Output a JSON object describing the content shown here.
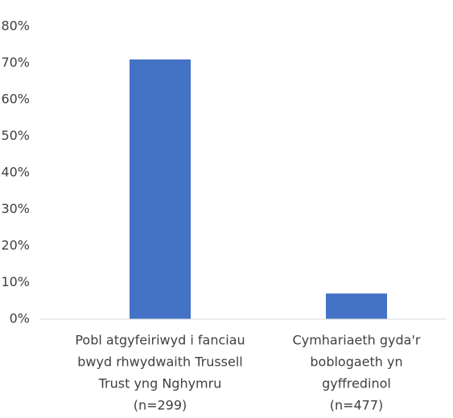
{
  "chart_data": {
    "type": "bar",
    "categories": [
      [
        "Pobl atgyfeiriwyd i fanciau",
        "bwyd rhwydwaith Trussell",
        "Trust yng Nghymru",
        "(n=299)"
      ],
      [
        "Cymhariaeth gyda'r",
        "boblogaeth yn",
        "gyffredinol",
        "(n=477)"
      ]
    ],
    "values": [
      71,
      7
    ],
    "color": "#4472c4",
    "ylim": [
      0,
      80
    ],
    "yticks": [
      {
        "value": 0,
        "label": "0%"
      },
      {
        "value": 10,
        "label": "10%"
      },
      {
        "value": 20,
        "label": "20%"
      },
      {
        "value": 30,
        "label": "30%"
      },
      {
        "value": 40,
        "label": "40%"
      },
      {
        "value": 50,
        "label": "50%"
      },
      {
        "value": 60,
        "label": "60%"
      },
      {
        "value": 70,
        "label": "70%"
      },
      {
        "value": 80,
        "label": "80%"
      }
    ],
    "grid": false
  }
}
